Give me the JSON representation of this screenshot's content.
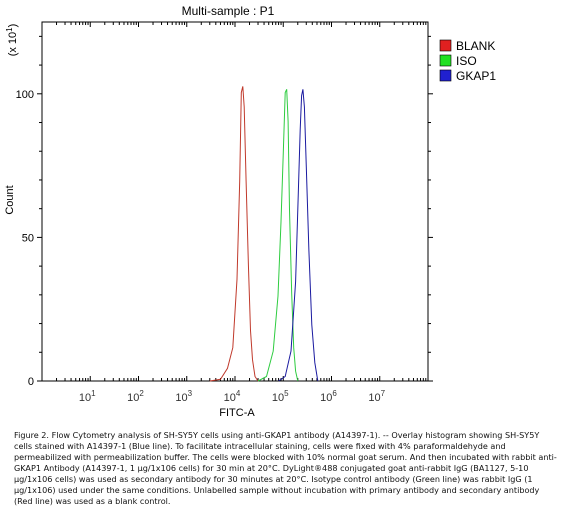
{
  "chart_data": {
    "type": "line",
    "title": "Multi-sample : P1",
    "xlabel": "FITC-A",
    "ylabel": "Count",
    "y_multiplier": "(x 10",
    "y_multiplier_exp": "1",
    "y_multiplier_close": ")",
    "xscale": "log",
    "xlim": [
      1,
      100000000
    ],
    "ylim": [
      0,
      125
    ],
    "x_ticks": [
      {
        "base": "10",
        "exp": "1",
        "value": 10
      },
      {
        "base": "10",
        "exp": "2",
        "value": 100
      },
      {
        "base": "10",
        "exp": "3",
        "value": 1000
      },
      {
        "base": "10",
        "exp": "4",
        "value": 10000
      },
      {
        "base": "10",
        "exp": "5",
        "value": 100000
      },
      {
        "base": "10",
        "exp": "6",
        "value": 1000000
      },
      {
        "base": "10",
        "exp": "7",
        "value": 10000000
      }
    ],
    "y_ticks": [
      "0",
      "50",
      "100"
    ],
    "y_tick_values": [
      0,
      50,
      100
    ],
    "legend_position": "top-right",
    "series": [
      {
        "name": "BLANK",
        "color": "#c0392b",
        "legend_color": "#e02020",
        "x": [
          3000,
          5000,
          7000,
          9000,
          11000,
          12500,
          13500,
          14500,
          15500,
          17000,
          19000,
          21000,
          23000,
          26000,
          30000
        ],
        "y": [
          0,
          1,
          4,
          12,
          35,
          70,
          100,
          103,
          95,
          70,
          40,
          18,
          7,
          2,
          0
        ]
      },
      {
        "name": "ISO",
        "color": "#2ecc40",
        "legend_color": "#20e020",
        "x": [
          30000,
          45000,
          62000,
          78000,
          90000,
          100000,
          110000,
          118000,
          126000,
          135000,
          150000,
          165000,
          180000,
          200000
        ],
        "y": [
          0,
          2,
          10,
          30,
          55,
          80,
          100,
          102,
          90,
          60,
          30,
          12,
          3,
          0
        ]
      },
      {
        "name": "GKAP1",
        "color": "#1a1aa0",
        "legend_color": "#2020d0",
        "x": [
          80000,
          110000,
          145000,
          180000,
          205000,
          225000,
          240000,
          255000,
          275000,
          300000,
          340000,
          390000,
          450000,
          520000
        ],
        "y": [
          0,
          2,
          10,
          35,
          65,
          88,
          99,
          102,
          95,
          75,
          45,
          20,
          6,
          0
        ]
      }
    ]
  },
  "caption": "Figure 2. Flow Cytometry analysis of SH-SY5Y cells using anti-GKAP1 antibody (A14397-1). -- Overlay histogram showing SH-SY5Y cells stained with A14397-1 (Blue line). To facilitate intracellular staining, cells were fixed with 4% paraformaldehyde and permeabilized with permeabilization buffer. The cells were blocked with 10% normal goat serum. And then incubated with rabbit anti-GKAP1 Antibody (A14397-1, 1 μg/1x106 cells) for 30 min at 20°C. DyLight®488 conjugated goat anti-rabbit IgG (BA1127, 5-10 μg/1x106 cells) was used as secondary antibody for 30 minutes at 20°C. Isotype control antibody (Green line) was rabbit IgG (1 μg/1x106) used under the same conditions. Unlabelled sample without incubation with primary antibody and secondary antibody (Red line) was used as a blank control."
}
